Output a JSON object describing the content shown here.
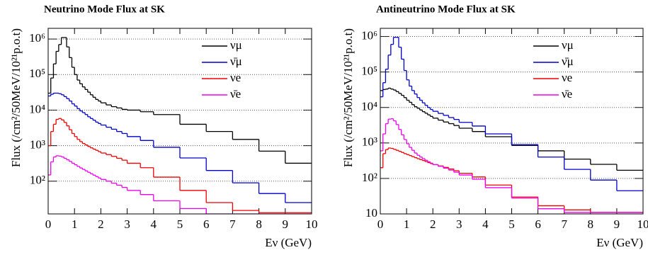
{
  "chart_data": [
    {
      "type": "histogram",
      "title": "Neutrino Mode Flux at SK",
      "x_label": "Eν (GeV)",
      "y_label": "Flux (/cm²/50MeV/10²¹p.o.t)",
      "log_y": true,
      "grid": true,
      "legend": "upper right",
      "xlim": [
        0,
        10
      ],
      "xticks": [
        0,
        1,
        2,
        3,
        4,
        5,
        6,
        7,
        8,
        9,
        10
      ],
      "ylim": [
        12,
        2000000
      ],
      "yticks": [
        {
          "value": 100,
          "label": "10²"
        },
        {
          "value": 1000,
          "label": "10³"
        },
        {
          "value": 10000,
          "label": "10⁴"
        },
        {
          "value": 100000,
          "label": "10⁵"
        },
        {
          "value": 1000000,
          "label": "10⁶"
        }
      ],
      "bins": [
        0,
        0.1,
        0.2,
        0.3,
        0.4,
        0.5,
        0.6,
        0.7,
        0.8,
        0.9,
        1.0,
        1.1,
        1.2,
        1.3,
        1.4,
        1.5,
        1.6,
        1.7,
        1.8,
        1.9,
        2.0,
        2.2,
        2.4,
        2.6,
        2.8,
        3.0,
        3.5,
        4,
        5,
        6,
        7,
        8,
        9,
        10
      ],
      "series": [
        {
          "name": "νμ",
          "color": "#000000",
          "values": [
            30000,
            80000,
            200000,
            450000,
            700000,
            1100000,
            1100000,
            600000,
            300000,
            160000,
            100000,
            70000,
            55000,
            45000,
            38000,
            32000,
            27000,
            23000,
            20000,
            18000,
            16000,
            14000,
            12500,
            11500,
            10500,
            10000,
            9000,
            7500,
            4000,
            2500,
            1500,
            700,
            320
          ]
        },
        {
          "name": "ν̄μ",
          "color": "#0000cc",
          "values": [
            25000,
            28000,
            30000,
            30000,
            29000,
            27000,
            24000,
            21000,
            18000,
            15000,
            13000,
            11000,
            9500,
            8500,
            7500,
            6500,
            5800,
            5200,
            4600,
            4200,
            3800,
            3300,
            2900,
            2500,
            2200,
            1800,
            1400,
            900,
            450,
            200,
            90,
            45,
            25
          ]
        },
        {
          "name": "νe",
          "color": "#ee0000",
          "values": [
            1000,
            2500,
            4000,
            5500,
            5800,
            5300,
            4500,
            3600,
            2800,
            2200,
            1800,
            1500,
            1300,
            1150,
            1050,
            950,
            870,
            800,
            740,
            680,
            620,
            560,
            500,
            440,
            390,
            320,
            240,
            130,
            55,
            25,
            15,
            13,
            13
          ]
        },
        {
          "name": "ν̄e",
          "color": "#ee00ee",
          "values": [
            150,
            350,
            480,
            520,
            510,
            480,
            440,
            400,
            360,
            320,
            290,
            260,
            235,
            215,
            195,
            178,
            162,
            148,
            135,
            123,
            112,
            100,
            88,
            77,
            67,
            55,
            42,
            28,
            17,
            12,
            12,
            12,
            12
          ]
        }
      ]
    },
    {
      "type": "histogram",
      "title": "Antineutrino Mode Flux at SK",
      "x_label": "Eν (GeV)",
      "y_label": "Flux (/cm²/50MeV/10²¹p.o.t)",
      "log_y": true,
      "grid": true,
      "legend": "upper right",
      "xlim": [
        0,
        10
      ],
      "xticks": [
        0,
        1,
        2,
        3,
        4,
        5,
        6,
        7,
        8,
        9,
        10
      ],
      "ylim": [
        10,
        1700000
      ],
      "yticks": [
        10,
        {
          "value": 100,
          "label": "10²"
        },
        {
          "value": 1000,
          "label": "10³"
        },
        {
          "value": 10000,
          "label": "10⁴"
        },
        {
          "value": 100000,
          "label": "10⁵"
        },
        {
          "value": 1000000,
          "label": "10⁶"
        }
      ],
      "bins": [
        0,
        0.1,
        0.2,
        0.3,
        0.4,
        0.5,
        0.6,
        0.7,
        0.8,
        0.9,
        1.0,
        1.1,
        1.2,
        1.3,
        1.4,
        1.5,
        1.6,
        1.7,
        1.8,
        1.9,
        2.0,
        2.2,
        2.4,
        2.6,
        2.8,
        3.0,
        3.5,
        4,
        5,
        6,
        7,
        8,
        9,
        10
      ],
      "series": [
        {
          "name": "νμ",
          "color": "#000000",
          "values": [
            30000,
            32000,
            33000,
            35000,
            33000,
            31000,
            28000,
            25000,
            22000,
            19000,
            16000,
            14000,
            12000,
            10500,
            9500,
            8500,
            7600,
            6900,
            6200,
            5600,
            5000,
            4400,
            3900,
            3500,
            3100,
            2600,
            2100,
            1500,
            850,
            600,
            350,
            250,
            170
          ]
        },
        {
          "name": "ν̄μ",
          "color": "#0000cc",
          "values": [
            20000,
            50000,
            120000,
            300000,
            600000,
            950000,
            950000,
            500000,
            230000,
            110000,
            60000,
            40000,
            30000,
            24000,
            19000,
            16000,
            13500,
            11500,
            10000,
            8800,
            7800,
            6800,
            6000,
            5200,
            4600,
            3800,
            3000,
            1800,
            900,
            400,
            180,
            90,
            45
          ]
        },
        {
          "name": "νe",
          "color": "#ee0000",
          "values": [
            200,
            500,
            650,
            720,
            700,
            660,
            620,
            580,
            540,
            500,
            470,
            440,
            410,
            385,
            360,
            340,
            320,
            300,
            280,
            262,
            245,
            225,
            205,
            185,
            165,
            140,
            110,
            65,
            30,
            17,
            13,
            11,
            11
          ]
        },
        {
          "name": "ν̄e",
          "color": "#ee00ee",
          "values": [
            600,
            1800,
            3500,
            4700,
            4800,
            4200,
            3300,
            2400,
            1700,
            1250,
            950,
            750,
            620,
            520,
            450,
            400,
            360,
            325,
            295,
            270,
            245,
            220,
            195,
            172,
            150,
            125,
            95,
            55,
            28,
            14,
            11,
            11,
            11
          ]
        }
      ]
    }
  ]
}
